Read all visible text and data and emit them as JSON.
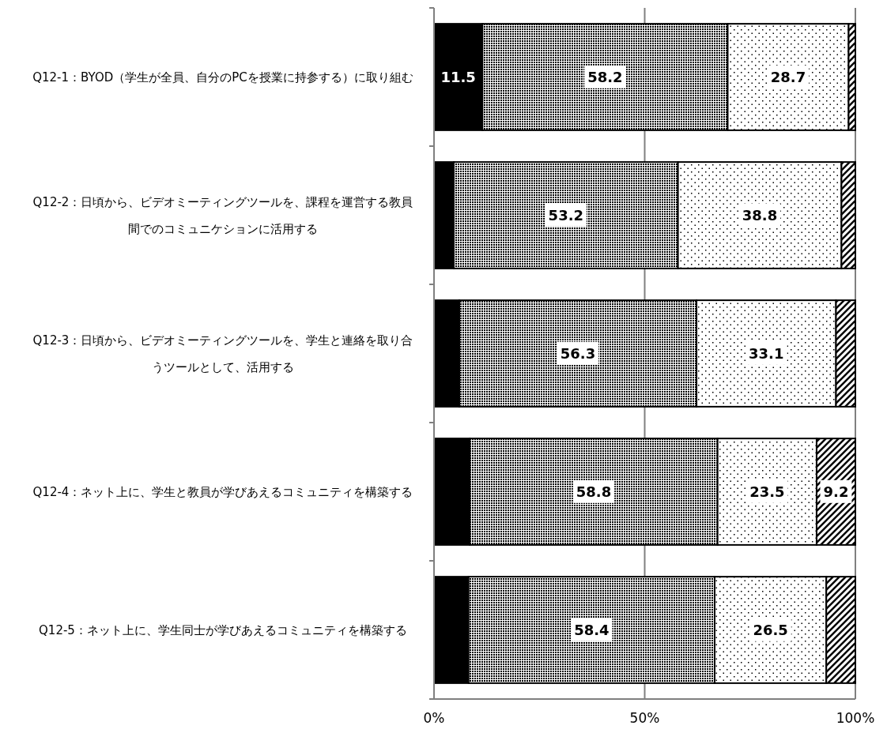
{
  "chart_data": {
    "type": "bar",
    "orientation": "horizontal",
    "stacked": true,
    "categories": [
      "Q12-1：BYOD（学生が全員、自分のPCを授業に持参する）に取り組む",
      "Q12-2：日頃から、ビデオミーティングツールを、課程を運営する教員間でのコミュニケションに活用する",
      "Q12-3：日頃から、ビデオミーティングツールを、学生と連絡を取り合うツールとして、活用する",
      "Q12-4：ネット上に、学生と教員が学びあえるコミュニティを構築する",
      "Q12-5：ネット上に、学生同士が学びあえるコミュニティを構築する"
    ],
    "series": [
      {
        "color": "#000000",
        "values": [
          11.5,
          4.7,
          6.0,
          8.5,
          8.2
        ],
        "value_labels": [
          "11.5",
          null,
          null,
          null,
          null
        ]
      },
      {
        "color": "#000000",
        "values": [
          58.2,
          53.2,
          56.3,
          58.8,
          58.4
        ],
        "value_labels": [
          "58.2",
          "53.2",
          "56.3",
          "58.8",
          "58.4"
        ]
      },
      {
        "color": "#000000",
        "values": [
          28.7,
          38.8,
          33.1,
          23.5,
          26.5
        ],
        "value_labels": [
          "28.7",
          "38.8",
          "33.1",
          "23.5",
          "26.5"
        ]
      },
      {
        "color": "#000000",
        "values": [
          1.6,
          3.3,
          4.6,
          9.2,
          6.9
        ],
        "value_labels": [
          null,
          null,
          null,
          "9.2",
          null
        ]
      }
    ],
    "xlim": [
      0,
      100
    ],
    "xticks": [
      {
        "value": 0,
        "label": "0%"
      },
      {
        "value": 50,
        "label": "50%"
      },
      {
        "value": 100,
        "label": "100%"
      }
    ],
    "grid": "x"
  }
}
